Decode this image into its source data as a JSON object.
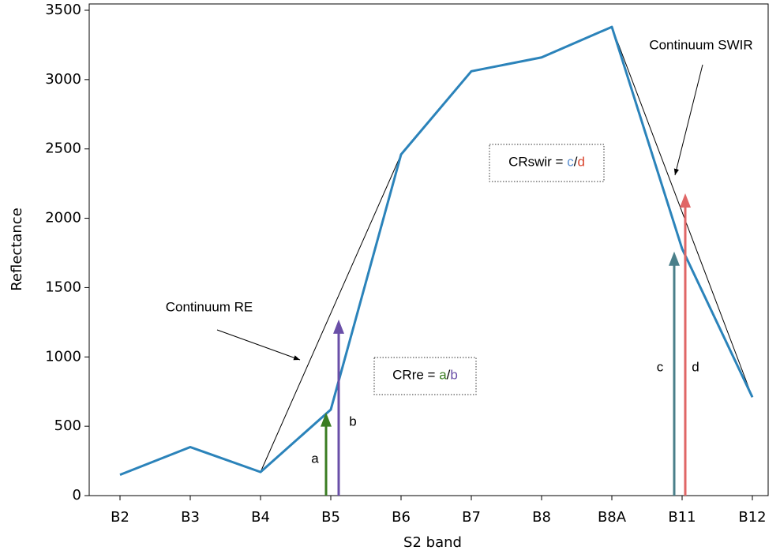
{
  "chart_data": {
    "type": "line",
    "x_label": "S2 band",
    "y_label": "Reflectance",
    "categories": [
      "B2",
      "B3",
      "B4",
      "B5",
      "B6",
      "B7",
      "B8",
      "B8A",
      "B11",
      "B12"
    ],
    "series": [
      {
        "color": "#2b83ba",
        "values": [
          150,
          350,
          170,
          620,
          2460,
          3060,
          3160,
          3380,
          1780,
          710
        ]
      }
    ],
    "ylim": [
      0,
      3500
    ],
    "yticks": [
      0,
      500,
      1000,
      1500,
      2000,
      2500,
      3000,
      3500
    ],
    "continua": [
      {
        "text": "Continuum RE",
        "span": [
          "B4",
          "B6"
        ]
      },
      {
        "text": "Continuum SWIR",
        "span": [
          "B8A",
          "B12"
        ]
      }
    ],
    "arrows": [
      {
        "label": "a",
        "category": "B5",
        "value": 600,
        "color": "#3a7d22"
      },
      {
        "label": "b",
        "category": "B5",
        "value": 1270,
        "color": "#6a4fa8"
      },
      {
        "label": "c",
        "category": "B11",
        "value": 1760,
        "color": "#4a7f8a"
      },
      {
        "label": "d",
        "category": "B11",
        "value": 2180,
        "color": "#e06666"
      }
    ],
    "formulas": [
      {
        "parts": [
          {
            "text": "CRswir = ",
            "color": "#000000"
          },
          {
            "text": "c",
            "color": "#5b8fd0"
          },
          {
            "text": "/",
            "color": "#000000"
          },
          {
            "text": "d",
            "color": "#d9462f"
          }
        ]
      },
      {
        "parts": [
          {
            "text": "CRre = ",
            "color": "#000000"
          },
          {
            "text": "a",
            "color": "#3a7d22"
          },
          {
            "text": "/",
            "color": "#000000"
          },
          {
            "text": "b",
            "color": "#6a4fa8"
          }
        ]
      }
    ]
  }
}
